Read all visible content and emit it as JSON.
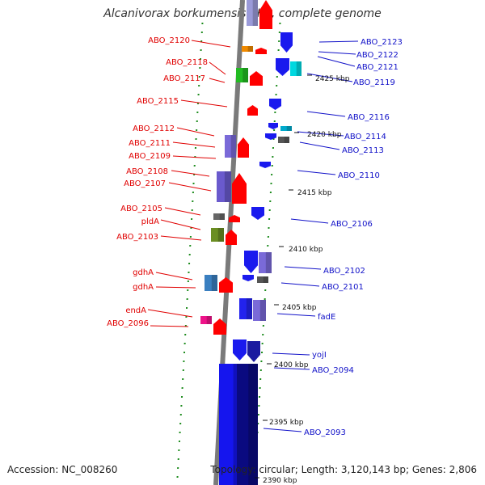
{
  "title": "Alcanivorax borkumensis SK2, complete genome",
  "accession": "Accession: NC_008260",
  "stats": "Topology: circular; Length: 3,120,143 bp; Genes: 2,806",
  "colors": {
    "left_label": "#e00000",
    "right_label": "#1010c8",
    "forward_gene": "#ff0000",
    "reverse_gene": "#1a1aee",
    "dotted_line": "#1e8c1e",
    "backbone": "#7a7a7a"
  },
  "ticks": [
    {
      "label": "2425 kbp"
    },
    {
      "label": "2420 kbp"
    },
    {
      "label": "2415 kbp"
    },
    {
      "label": "2410 kbp"
    },
    {
      "label": "2405 kbp"
    },
    {
      "label": "2400 kbp"
    },
    {
      "label": "2395 kbp"
    },
    {
      "label": "2390 kbp"
    }
  ],
  "left_labels": [
    {
      "text": "ABO_2120"
    },
    {
      "text": "ABO_2118"
    },
    {
      "text": "ABO_2117"
    },
    {
      "text": "ABO_2115"
    },
    {
      "text": "ABO_2112"
    },
    {
      "text": "ABO_2111"
    },
    {
      "text": "ABO_2109"
    },
    {
      "text": "ABO_2108"
    },
    {
      "text": "ABO_2107"
    },
    {
      "text": "ABO_2105"
    },
    {
      "text": "pldA"
    },
    {
      "text": "ABO_2103"
    },
    {
      "text": "gdhA"
    },
    {
      "text": "gdhA"
    },
    {
      "text": "endA"
    },
    {
      "text": "ABO_2096"
    }
  ],
  "right_labels": [
    {
      "text": "ABO_2123"
    },
    {
      "text": "ABO_2122"
    },
    {
      "text": "ABO_2121"
    },
    {
      "text": "ABO_2119"
    },
    {
      "text": "ABO_2116"
    },
    {
      "text": "ABO_2114"
    },
    {
      "text": "ABO_2113"
    },
    {
      "text": "ABO_2110"
    },
    {
      "text": "ABO_2106"
    },
    {
      "text": "ABO_2102"
    },
    {
      "text": "ABO_2101"
    },
    {
      "text": "fadE"
    },
    {
      "text": "yojI"
    },
    {
      "text": "ABO_2094"
    },
    {
      "text": "ABO_2093"
    }
  ]
}
